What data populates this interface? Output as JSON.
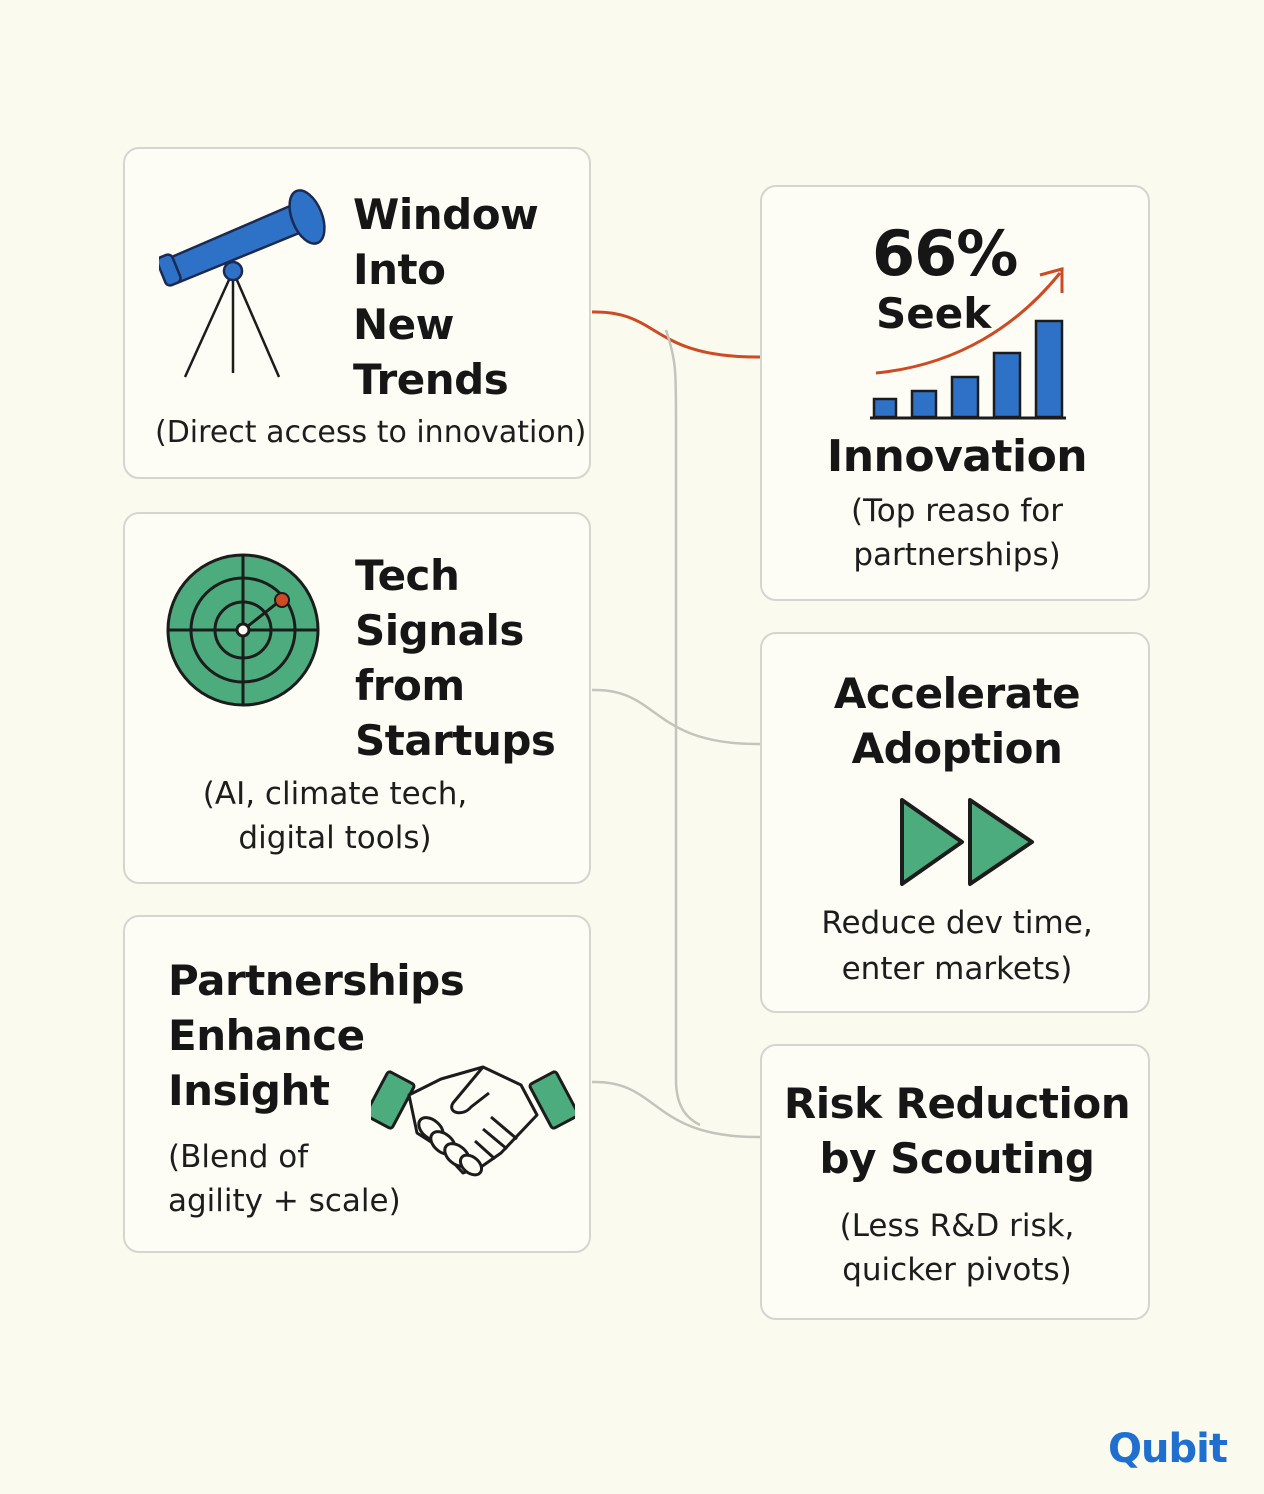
{
  "cards": {
    "window": {
      "title": [
        "Window",
        "Into",
        "New",
        "Trends"
      ],
      "subtitle": "(Direct access to innovation)",
      "icon": "telescope-icon"
    },
    "signals": {
      "title": [
        "Tech",
        "Signals",
        "from",
        "Startups"
      ],
      "subtitle": [
        "(AI, climate tech,",
        "digital tools)"
      ],
      "icon": "radar-icon"
    },
    "partnerships": {
      "title": [
        "Partnerships",
        "Enhance",
        "Insight"
      ],
      "subtitle": [
        "(Blend of",
        "agility + scale)"
      ],
      "icon": "handshake-icon"
    },
    "innovation": {
      "stat": "66%",
      "stat_label": "Seek",
      "title": "Innovation",
      "subtitle": [
        "(Top reaso for",
        "partnerships)"
      ],
      "icon": "rising-bar-chart-icon"
    },
    "adoption": {
      "title": [
        "Accelerate",
        "Adoption"
      ],
      "subtitle": [
        "Reduce dev time,",
        "enter markets)"
      ],
      "icon": "fast-forward-icon"
    },
    "risk": {
      "title": [
        "Risk Reduction",
        "by Scouting"
      ],
      "subtitle": [
        "(Less R&D risk,",
        "quicker pivots)"
      ]
    }
  },
  "colors": {
    "background": "#fbfaee",
    "blue": "#2e72c8",
    "green": "#4cac7e",
    "orange": "#cf4a22",
    "connector_gray": "#c4c4bd"
  },
  "brand": {
    "logo": "Qubit"
  }
}
